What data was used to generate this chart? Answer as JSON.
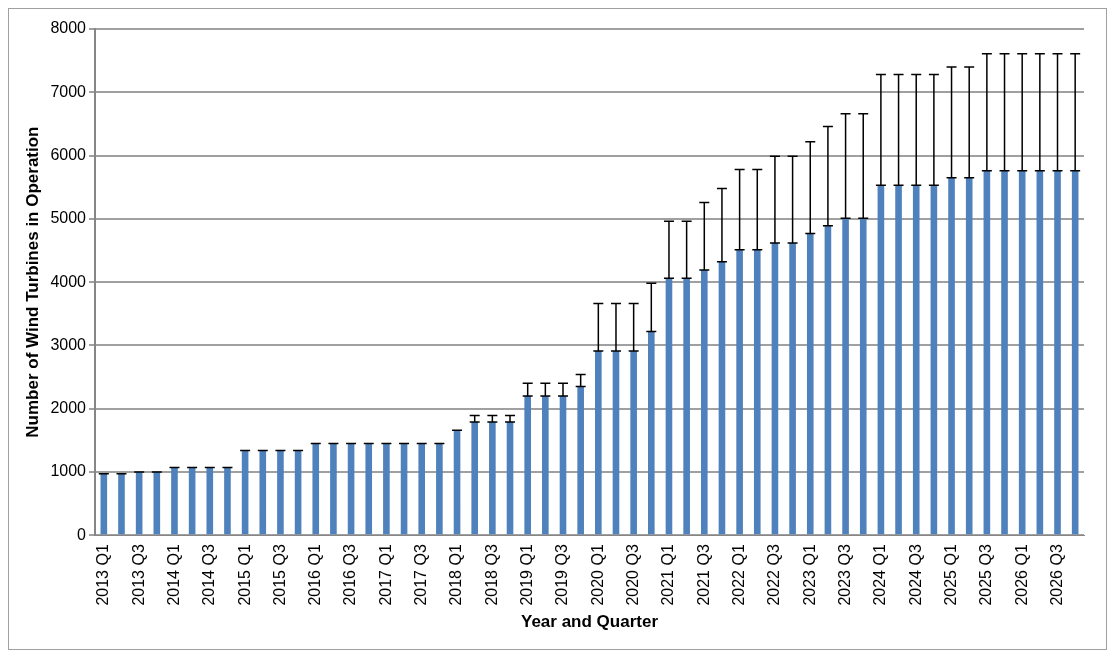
{
  "chart_data": {
    "type": "bar",
    "xlabel": "Year and Quarter",
    "ylabel": "Number of Wind Turbines in Operation",
    "categories": [
      "2013 Q1",
      null,
      "2013 Q3",
      null,
      "2014 Q1",
      null,
      "2014 Q3",
      null,
      "2015 Q1",
      null,
      "2015 Q3",
      null,
      "2016 Q1",
      null,
      "2016 Q3",
      null,
      "2017 Q1",
      null,
      "2017 Q3",
      null,
      "2018 Q1",
      null,
      "2018 Q3",
      null,
      "2019 Q1",
      null,
      "2019 Q3",
      null,
      "2020 Q1",
      null,
      "2020 Q3",
      null,
      "2021 Q1",
      null,
      "2021 Q3",
      null,
      "2022 Q1",
      null,
      "2022 Q3",
      null,
      "2023 Q1",
      null,
      "2023 Q3",
      null,
      "2024 Q1",
      null,
      "2024 Q3",
      null,
      "2025 Q1",
      null,
      "2025 Q3",
      null,
      "2026 Q1",
      null,
      "2026 Q3",
      null
    ],
    "values": [
      970,
      970,
      1000,
      1000,
      1070,
      1070,
      1070,
      1070,
      1340,
      1340,
      1340,
      1340,
      1450,
      1450,
      1450,
      1450,
      1450,
      1450,
      1450,
      1450,
      1660,
      1790,
      1790,
      1790,
      2200,
      2200,
      2200,
      2350,
      2910,
      2910,
      2910,
      3220,
      4060,
      4060,
      4190,
      4320,
      4510,
      4510,
      4620,
      4620,
      4770,
      4890,
      5010,
      5010,
      5530,
      5530,
      5530,
      5530,
      5650,
      5650,
      5760,
      5760,
      5760,
      5760,
      5760,
      5760
    ],
    "errors": [
      [
        970,
        970
      ],
      [
        970,
        970
      ],
      [
        1000,
        1000
      ],
      [
        1000,
        1000
      ],
      [
        1070,
        1070
      ],
      [
        1070,
        1070
      ],
      [
        1070,
        1070
      ],
      [
        1070,
        1070
      ],
      [
        1340,
        1340
      ],
      [
        1340,
        1340
      ],
      [
        1340,
        1340
      ],
      [
        1340,
        1340
      ],
      [
        1450,
        1450
      ],
      [
        1450,
        1450
      ],
      [
        1450,
        1450
      ],
      [
        1450,
        1450
      ],
      [
        1450,
        1450
      ],
      [
        1450,
        1450
      ],
      [
        1450,
        1450
      ],
      [
        1450,
        1450
      ],
      [
        1660,
        1660
      ],
      [
        1790,
        1890
      ],
      [
        1790,
        1890
      ],
      [
        1790,
        1890
      ],
      [
        2200,
        2400
      ],
      [
        2200,
        2400
      ],
      [
        2200,
        2400
      ],
      [
        2350,
        2540
      ],
      [
        2910,
        3660
      ],
      [
        2910,
        3660
      ],
      [
        2910,
        3660
      ],
      [
        3220,
        3980
      ],
      [
        4060,
        4960
      ],
      [
        4060,
        4960
      ],
      [
        4190,
        5260
      ],
      [
        4320,
        5480
      ],
      [
        4510,
        5780
      ],
      [
        4510,
        5780
      ],
      [
        4620,
        5990
      ],
      [
        4620,
        5990
      ],
      [
        4770,
        6220
      ],
      [
        4890,
        6460
      ],
      [
        5010,
        6660
      ],
      [
        5010,
        6660
      ],
      [
        5530,
        7280
      ],
      [
        5530,
        7280
      ],
      [
        5530,
        7280
      ],
      [
        5530,
        7280
      ],
      [
        5650,
        7400
      ],
      [
        5650,
        7400
      ],
      [
        5760,
        7610
      ],
      [
        5760,
        7610
      ],
      [
        5760,
        7610
      ],
      [
        5760,
        7610
      ],
      [
        5760,
        7610
      ],
      [
        5760,
        7610
      ]
    ],
    "color": "#4f81bd",
    "ylim": [
      0,
      8000
    ],
    "yticks": [
      0,
      1000,
      2000,
      3000,
      4000,
      5000,
      6000,
      7000,
      8000
    ],
    "grid": "y",
    "legend": false
  }
}
